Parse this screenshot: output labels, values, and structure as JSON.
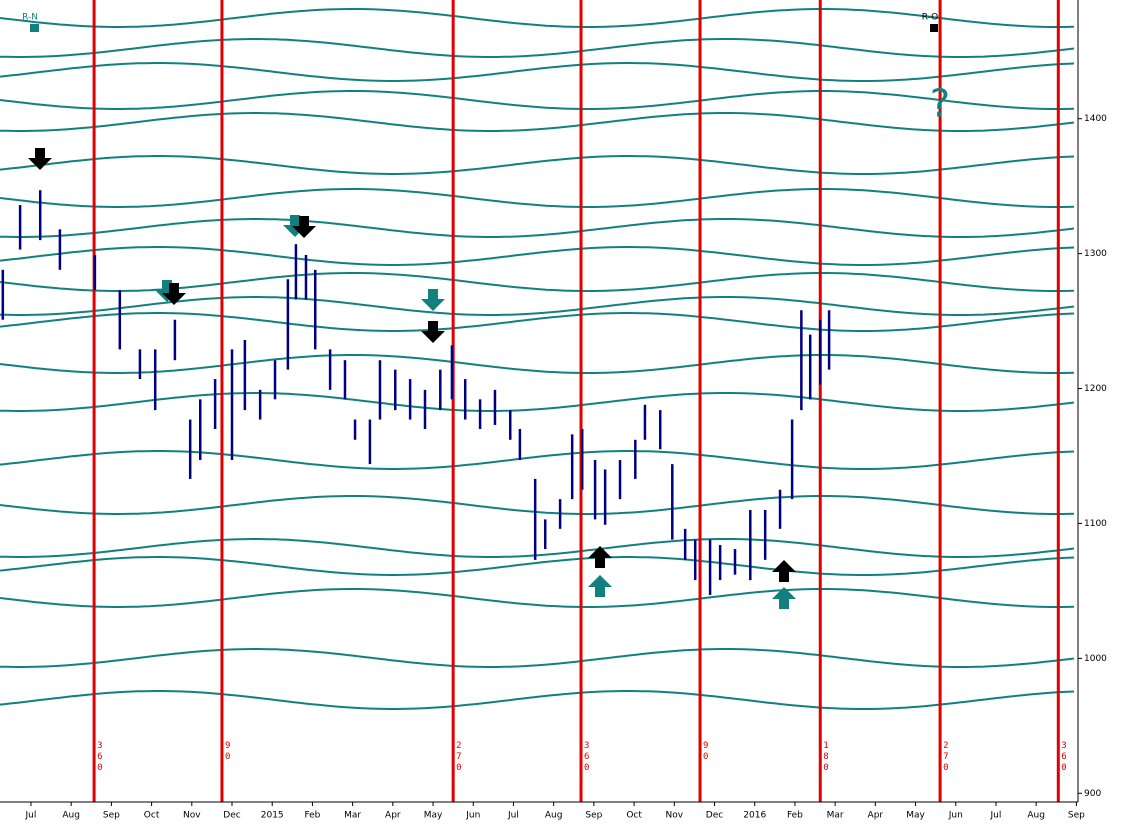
{
  "chart_data": {
    "type": "hilo",
    "xlim": [
      0.23,
      27.04
    ],
    "ylim": [
      895,
      1488
    ],
    "xticks": [
      {
        "value": 1,
        "label": "Jul"
      },
      {
        "value": 2,
        "label": "Aug"
      },
      {
        "value": 3,
        "label": "Sep"
      },
      {
        "value": 4,
        "label": "Oct"
      },
      {
        "value": 5,
        "label": "Nov"
      },
      {
        "value": 6,
        "label": "Dec"
      },
      {
        "value": 7,
        "label": "2015"
      },
      {
        "value": 8,
        "label": "Feb"
      },
      {
        "value": 9,
        "label": "Mar"
      },
      {
        "value": 10,
        "label": "Apr"
      },
      {
        "value": 11,
        "label": "May"
      },
      {
        "value": 12,
        "label": "Jun"
      },
      {
        "value": 13,
        "label": "Jul"
      },
      {
        "value": 14,
        "label": "Aug"
      },
      {
        "value": 15,
        "label": "Sep"
      },
      {
        "value": 16,
        "label": "Oct"
      },
      {
        "value": 17,
        "label": "Nov"
      },
      {
        "value": 18,
        "label": "Dec"
      },
      {
        "value": 19,
        "label": "2016"
      },
      {
        "value": 20,
        "label": "Feb"
      },
      {
        "value": 21,
        "label": "Mar"
      },
      {
        "value": 22,
        "label": "Apr"
      },
      {
        "value": 23,
        "label": "May"
      },
      {
        "value": 24,
        "label": "Jun"
      },
      {
        "value": 25,
        "label": "Jul"
      },
      {
        "value": 26,
        "label": "Aug"
      },
      {
        "value": 27,
        "label": "Sep"
      }
    ],
    "yticks": [
      900,
      1000,
      1100,
      1200,
      1300,
      1400
    ],
    "series": [
      {
        "color": "#000080",
        "x": [
          0.3,
          0.73,
          1.23,
          1.72,
          2.59,
          3.21,
          3.71,
          4.09,
          4.58,
          4.96,
          5.21,
          5.58,
          6.0,
          6.32,
          6.7,
          7.07,
          7.39,
          7.59,
          7.84,
          8.07,
          8.44,
          8.81,
          9.06,
          9.43,
          9.68,
          10.06,
          10.43,
          10.8,
          11.18,
          11.47,
          11.8,
          12.17,
          12.54,
          12.92,
          13.16,
          13.54,
          13.79,
          14.16,
          14.46,
          14.71,
          15.03,
          15.28,
          15.65,
          16.03,
          16.27,
          16.65,
          16.95,
          17.27,
          17.52,
          17.89,
          18.14,
          18.51,
          18.89,
          19.26,
          19.63,
          19.93,
          20.16,
          20.38,
          20.63,
          20.85
        ],
        "high": [
          1288,
          1336,
          1347,
          1318,
          1299,
          1273,
          1229,
          1229,
          1251,
          1177,
          1192,
          1207,
          1229,
          1236,
          1199,
          1221,
          1281,
          1307,
          1299,
          1288,
          1229,
          1221,
          1177,
          1177,
          1221,
          1214,
          1207,
          1199,
          1214,
          1232,
          1207,
          1192,
          1199,
          1184,
          1170,
          1133,
          1103,
          1118,
          1166,
          1170,
          1147,
          1140,
          1147,
          1162,
          1188,
          1184,
          1144,
          1096,
          1088,
          1088,
          1084,
          1081,
          1110,
          1110,
          1125,
          1177,
          1258,
          1240,
          1251,
          1258
        ],
        "low": [
          1251,
          1303,
          1310,
          1288,
          1273,
          1229,
          1207,
          1184,
          1221,
          1133,
          1147,
          1170,
          1147,
          1184,
          1177,
          1192,
          1214,
          1266,
          1266,
          1229,
          1199,
          1192,
          1162,
          1144,
          1177,
          1184,
          1177,
          1170,
          1184,
          1192,
          1177,
          1170,
          1173,
          1162,
          1147,
          1073,
          1081,
          1096,
          1118,
          1125,
          1103,
          1099,
          1118,
          1133,
          1162,
          1155,
          1088,
          1073,
          1058,
          1047,
          1058,
          1062,
          1058,
          1073,
          1096,
          1118,
          1184,
          1192,
          1203,
          1214
        ]
      }
    ],
    "cycle_lines": {
      "x": [
        2.57,
        5.75,
        11.5,
        14.68,
        17.64,
        20.63,
        23.61,
        26.55
      ],
      "labels": [
        "360",
        "90",
        "270",
        "360",
        "90",
        "180",
        "270",
        "360"
      ]
    },
    "annotations": {
      "r_n": "R-N",
      "r_o": "R-O",
      "question": "?"
    }
  }
}
